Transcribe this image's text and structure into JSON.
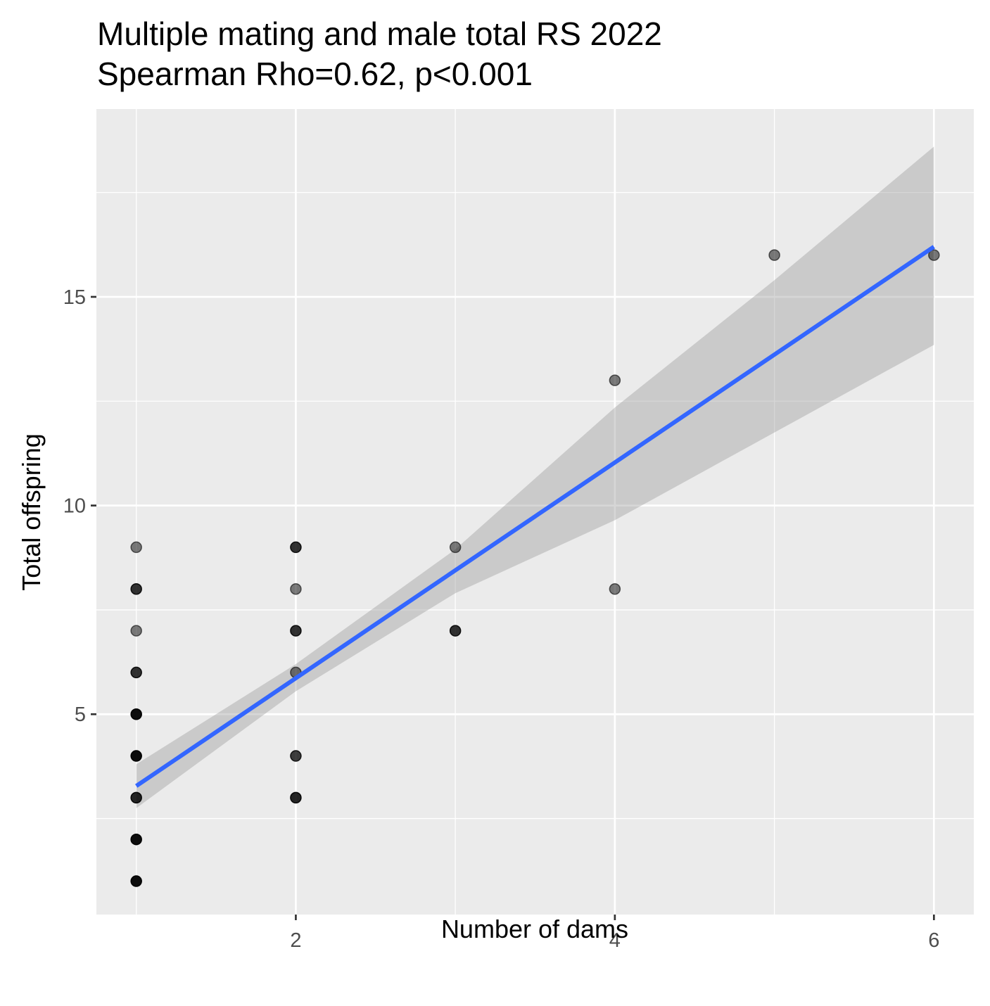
{
  "chart_data": {
    "type": "scatter",
    "title": "Multiple mating and male total RS 2022",
    "subtitle": "Spearman Rho=0.62, p<0.001",
    "xlabel": "Number of dams",
    "ylabel": "Total offspring",
    "xlim": [
      0.75,
      6.25
    ],
    "ylim": [
      0.2,
      19.5
    ],
    "x_ticks": [
      2,
      4,
      6
    ],
    "x_tick_labels": [
      "2",
      "4",
      "6"
    ],
    "y_ticks": [
      5,
      10,
      15
    ],
    "y_tick_labels": [
      "5",
      "10",
      "15"
    ],
    "x_minor_grid": [
      1,
      3,
      5
    ],
    "y_minor_grid": [
      2.5,
      7.5,
      12.5,
      17.5
    ],
    "grid": true,
    "points": [
      {
        "x": 1,
        "y": 1,
        "alpha": 0.95
      },
      {
        "x": 1,
        "y": 2,
        "alpha": 0.95
      },
      {
        "x": 1,
        "y": 3,
        "alpha": 0.85
      },
      {
        "x": 1,
        "y": 4,
        "alpha": 0.95
      },
      {
        "x": 1,
        "y": 5,
        "alpha": 0.95
      },
      {
        "x": 1,
        "y": 6,
        "alpha": 0.8
      },
      {
        "x": 1,
        "y": 7,
        "alpha": 0.5
      },
      {
        "x": 1,
        "y": 8,
        "alpha": 0.8
      },
      {
        "x": 1,
        "y": 9,
        "alpha": 0.5
      },
      {
        "x": 2,
        "y": 3,
        "alpha": 0.85
      },
      {
        "x": 2,
        "y": 4,
        "alpha": 0.75
      },
      {
        "x": 2,
        "y": 6,
        "alpha": 0.5
      },
      {
        "x": 2,
        "y": 7,
        "alpha": 0.8
      },
      {
        "x": 2,
        "y": 8,
        "alpha": 0.5
      },
      {
        "x": 2,
        "y": 9,
        "alpha": 0.8
      },
      {
        "x": 3,
        "y": 7,
        "alpha": 0.8
      },
      {
        "x": 3,
        "y": 9,
        "alpha": 0.5
      },
      {
        "x": 4,
        "y": 8,
        "alpha": 0.5
      },
      {
        "x": 4,
        "y": 13,
        "alpha": 0.5
      },
      {
        "x": 5,
        "y": 16,
        "alpha": 0.5
      },
      {
        "x": 6,
        "y": 16,
        "alpha": 0.5
      }
    ],
    "fit_line": {
      "x": [
        1,
        6
      ],
      "y": [
        3.28,
        16.2
      ]
    },
    "confidence_band": {
      "x": [
        1,
        2,
        3,
        4,
        5,
        6
      ],
      "lower": [
        2.75,
        5.55,
        7.9,
        9.65,
        11.75,
        13.85
      ],
      "upper": [
        3.8,
        6.2,
        8.95,
        12.35,
        15.4,
        18.6
      ]
    },
    "colors": {
      "panel_background": "#ebebeb",
      "grid": "#ffffff",
      "fit_line": "#3366ff",
      "confidence_band": "#999999",
      "point": "#000000",
      "tick_label": "#4d4d4d",
      "tick_mark": "#333333"
    }
  }
}
